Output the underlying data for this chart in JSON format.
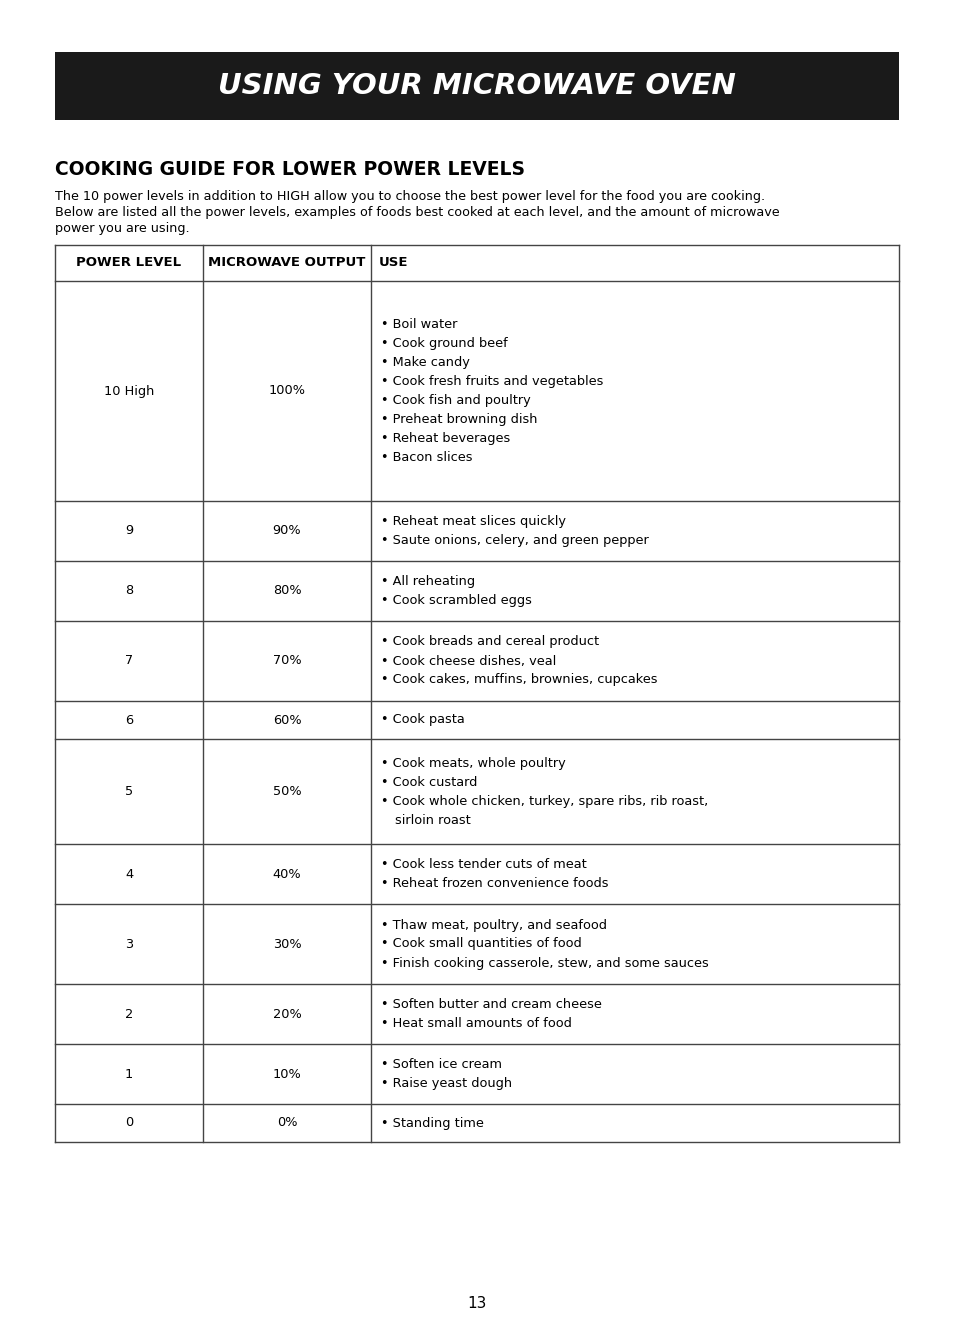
{
  "title": "USING YOUR MICROWAVE OVEN",
  "section_title": "COOKING GUIDE FOR LOWER POWER LEVELS",
  "intro_line1": "The 10 power levels in addition to HIGH allow you to choose the best power level for the food you are cooking.",
  "intro_line2": "Below are listed all the power levels, examples of foods best cooked at each level, and the amount of microwave",
  "intro_line3": "power you are using.",
  "col_headers": [
    "POWER LEVEL",
    "MICROWAVE OUTPUT",
    "USE"
  ],
  "rows": [
    {
      "power": "10 High",
      "output": "100%",
      "uses": [
        "Boil water",
        "Cook ground beef",
        "Make candy",
        "Cook fresh fruits and vegetables",
        "Cook fish and poultry",
        "Preheat browning dish",
        "Reheat beverages",
        "Bacon slices"
      ],
      "use_cont": []
    },
    {
      "power": "9",
      "output": "90%",
      "uses": [
        "Reheat meat slices quickly",
        "Saute onions, celery, and green pepper"
      ],
      "use_cont": []
    },
    {
      "power": "8",
      "output": "80%",
      "uses": [
        "All reheating",
        "Cook scrambled eggs"
      ],
      "use_cont": []
    },
    {
      "power": "7",
      "output": "70%",
      "uses": [
        "Cook breads and cereal product",
        "Cook cheese dishes, veal",
        "Cook cakes, muffins, brownies, cupcakes"
      ],
      "use_cont": []
    },
    {
      "power": "6",
      "output": "60%",
      "uses": [
        "Cook pasta"
      ],
      "use_cont": []
    },
    {
      "power": "5",
      "output": "50%",
      "uses": [
        "Cook meats, whole poultry",
        "Cook custard",
        "Cook whole chicken, turkey, spare ribs, rib roast,"
      ],
      "use_cont": [
        "sirloin roast"
      ]
    },
    {
      "power": "4",
      "output": "40%",
      "uses": [
        "Cook less tender cuts of meat",
        "Reheat frozen convenience foods"
      ],
      "use_cont": []
    },
    {
      "power": "3",
      "output": "30%",
      "uses": [
        "Thaw meat, poultry, and seafood",
        "Cook small quantities of food",
        "Finish cooking casserole, stew, and some sauces"
      ],
      "use_cont": []
    },
    {
      "power": "2",
      "output": "20%",
      "uses": [
        "Soften butter and cream cheese",
        "Heat small amounts of food"
      ],
      "use_cont": []
    },
    {
      "power": "1",
      "output": "10%",
      "uses": [
        "Soften ice cream",
        "Raise yeast dough"
      ],
      "use_cont": []
    },
    {
      "power": "0",
      "output": "0%",
      "uses": [
        "Standing time"
      ],
      "use_cont": []
    }
  ],
  "page_number": "13",
  "bg_color": "#ffffff",
  "header_bg": "#1a1a1a",
  "header_text_color": "#ffffff",
  "border_color": "#444444",
  "text_color": "#000000",
  "figw": 9.54,
  "figh": 13.42,
  "dpi": 100
}
